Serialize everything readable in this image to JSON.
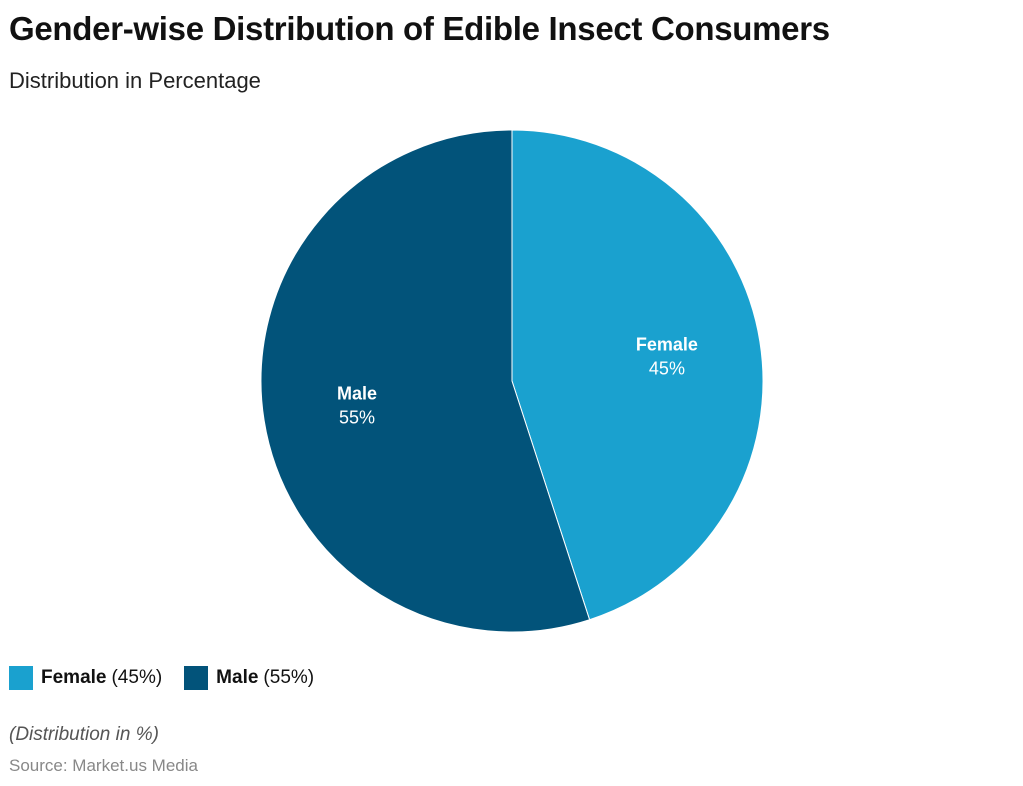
{
  "chart_data": {
    "type": "pie",
    "title": "Gender-wise Distribution of Edible Insect Consumers",
    "subtitle": "Distribution in Percentage",
    "categories": [
      "Female",
      "Male"
    ],
    "values": [
      45,
      55
    ],
    "value_labels": [
      "45%",
      "55%"
    ],
    "colors": [
      "#1aa1cf",
      "#02537a"
    ],
    "legend_labels": [
      "(45%)",
      "(55%)"
    ],
    "legend_position": "bottom-left",
    "note": "(Distribution in %)",
    "source": "Source: Market.us Media"
  }
}
